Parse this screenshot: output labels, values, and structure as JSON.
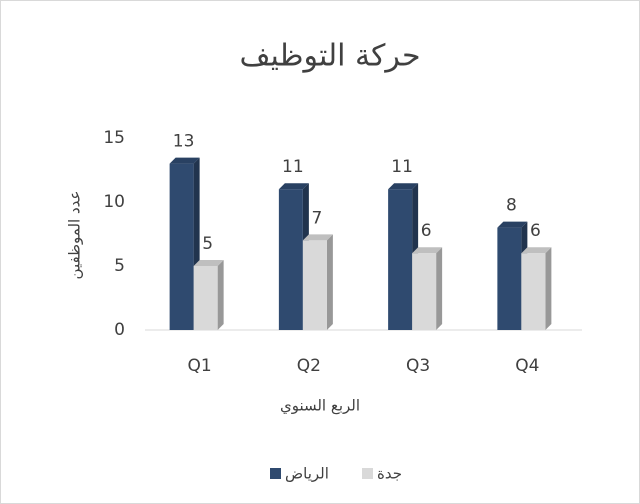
{
  "chart_data": {
    "type": "bar3d",
    "title": "حركة التوظيف",
    "xlabel": "الربع السنوي",
    "ylabel": "عدد الموظفين",
    "categories": [
      "Q1",
      "Q2",
      "Q3",
      "Q4"
    ],
    "series": [
      {
        "name": "الرياض",
        "color": "#2f4a6f",
        "values": [
          13,
          11,
          11,
          8
        ]
      },
      {
        "name": "جدة",
        "color": "#d9d9d9",
        "values": [
          5,
          7,
          6,
          6
        ]
      }
    ],
    "ylim": [
      0,
      15
    ],
    "yticks": [
      0,
      5,
      10,
      15
    ],
    "grid": false,
    "legend": "bottom"
  }
}
